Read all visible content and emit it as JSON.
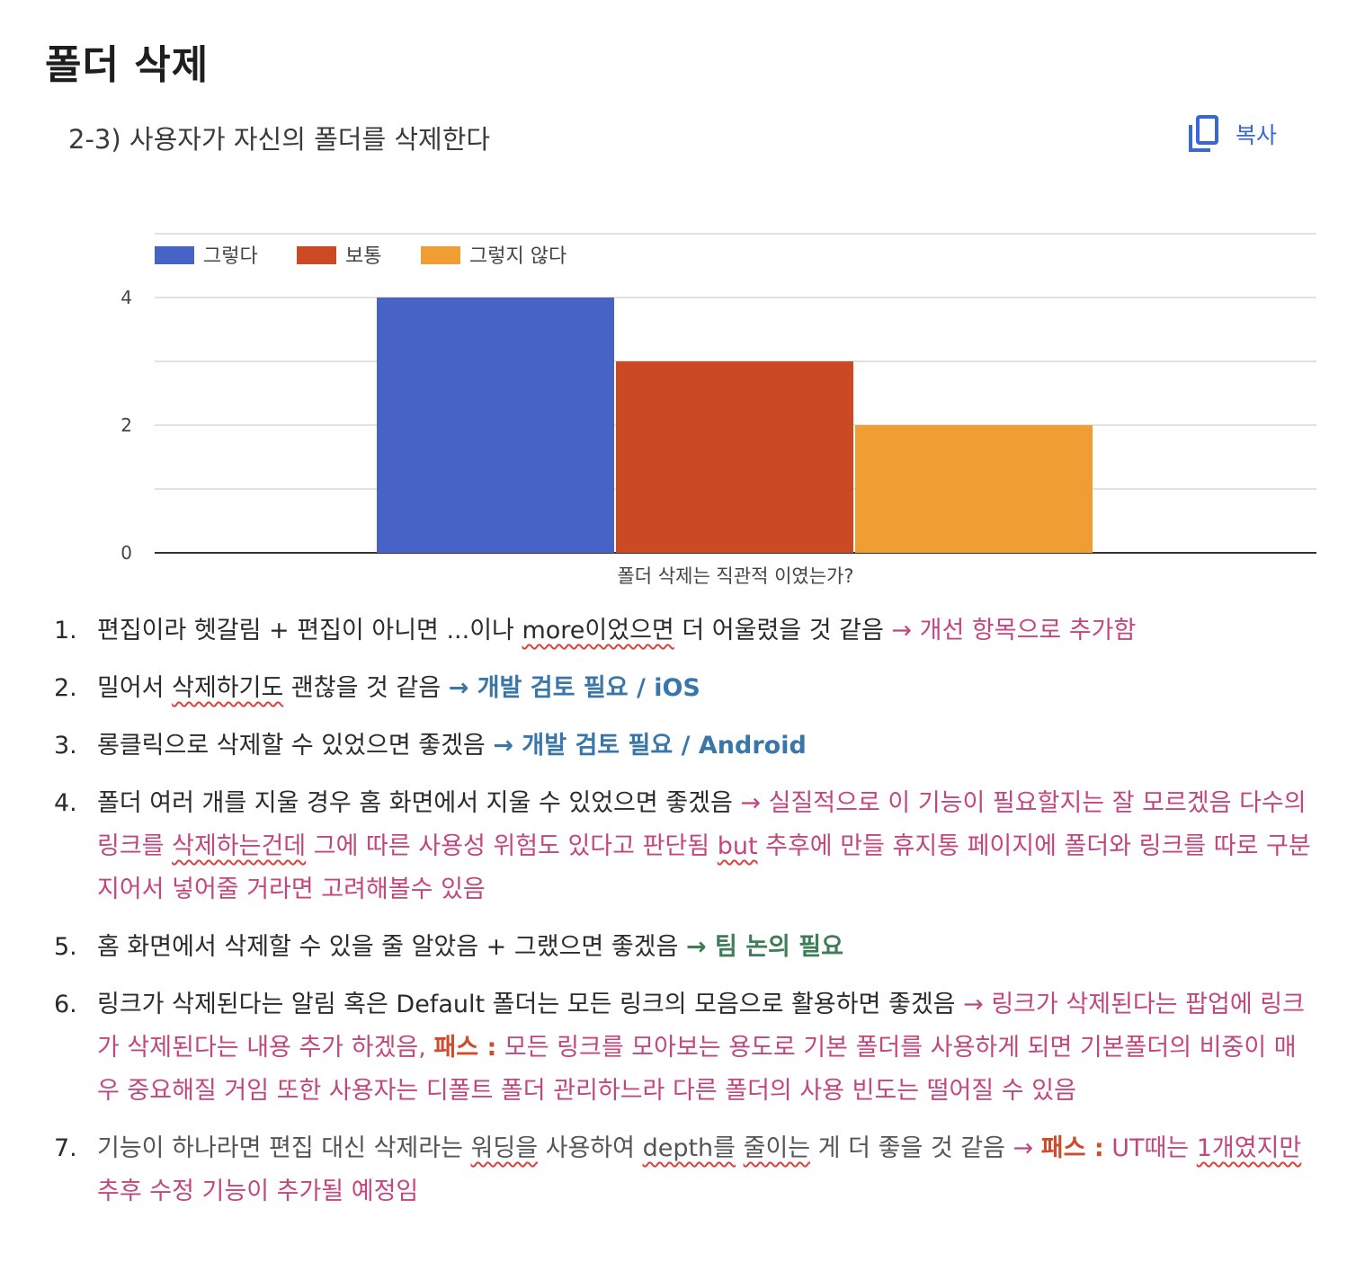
{
  "page": {
    "title": "폴더 삭제",
    "question": "2-3) 사용자가 자신의 폴더를 삭제한다",
    "copy_label": "복사"
  },
  "icons": {
    "copy": "copy-icon"
  },
  "colors": {
    "series_1": "#4763c5",
    "series_2": "#cb4a23",
    "series_3": "#f09e33",
    "pink": "#c2477f",
    "blue": "#3a76a8",
    "green": "#3e7d57"
  },
  "chart_data": {
    "type": "bar",
    "title": "",
    "categories": [
      "폴더 삭제는 직관적 이였는가?"
    ],
    "series": [
      {
        "name": "그렇다",
        "values": [
          4
        ]
      },
      {
        "name": "보통",
        "values": [
          3
        ]
      },
      {
        "name": "그렇지 않다",
        "values": [
          2
        ]
      }
    ],
    "ylim": [
      0,
      4
    ],
    "yticks": [
      "0",
      "2",
      "4"
    ],
    "grid": true,
    "legend": "top-left"
  },
  "notes": [
    {
      "num": "1.",
      "segments": [
        {
          "t": "편집이라 헷갈림 + 편집이 아니면 ...이나 ",
          "c": ""
        },
        {
          "t": "more이었으면",
          "c": "squig"
        },
        {
          "t": " 더 어울렸을 것 같음 ",
          "c": ""
        },
        {
          "t": "→ 개선 항목으로 추가함",
          "c": "pink"
        }
      ]
    },
    {
      "num": "2.",
      "segments": [
        {
          "t": "밀어서 ",
          "c": ""
        },
        {
          "t": "삭제하기도",
          "c": "squig"
        },
        {
          "t": " 괜찮을 것 같음 ",
          "c": ""
        },
        {
          "t": "→ 개발 검토 필요 / iOS",
          "c": "blue"
        }
      ]
    },
    {
      "num": "3.",
      "segments": [
        {
          "t": "롱클릭으로 삭제할 수 있었으면 좋겠음 ",
          "c": ""
        },
        {
          "t": "→ 개발 검토 필요 / Android",
          "c": "blue"
        }
      ]
    },
    {
      "num": "4.",
      "segments": [
        {
          "t": "폴더 여러 개를 지울 경우 홈 화면에서 지울 수 있었으면 좋겠음 ",
          "c": ""
        },
        {
          "t": "→ 실질적으로 이 기능이 필요할지는 잘 모르겠음 다수의 링크를 ",
          "c": "pink"
        },
        {
          "t": "삭제하는건데",
          "c": "pink squig"
        },
        {
          "t": " 그에 따른 사용성 위험도 있다고 판단됨 ",
          "c": "pink"
        },
        {
          "t": "but",
          "c": "pink squig"
        },
        {
          "t": " 추후에 만들 휴지통 페이지에 폴더와 링크를 따로 구분지어서 넣어줄 거라면 고려해볼수 있음",
          "c": "pink"
        }
      ]
    },
    {
      "num": "5.",
      "segments": [
        {
          "t": "홈 화면에서 삭제할 수 있을 줄 알았음 + 그랬으면 좋겠음  ",
          "c": ""
        },
        {
          "t": "→ 팀 논의 필요",
          "c": "green"
        }
      ]
    },
    {
      "num": "6.",
      "segments": [
        {
          "t": "링크가 삭제된다는 알림 혹은 Default 폴더는 모든 링크의 모음으로 활용하면 좋겠음 ",
          "c": ""
        },
        {
          "t": "→ 링크가 삭제된다는 팝업에 링크가 삭제된다는 내용 추가 하겠음, ",
          "c": "pink"
        },
        {
          "t": "패스 :",
          "c": "redb"
        },
        {
          "t": " 모든 링크를 모아보는 용도로 기본 폴더를 사용하게 되면 기본폴더의 비중이 매우 중요해질 거임 또한 사용자는 디폴트 폴더 관리하느라 다른 폴더의 사용 빈도는 떨어질 수 있음",
          "c": "pink"
        }
      ]
    },
    {
      "num": "7.",
      "segments": [
        {
          "t": "기능이 하나라면 편집 대신 삭제라는 ",
          "c": "grey"
        },
        {
          "t": "워딩을",
          "c": "grey squig"
        },
        {
          "t": " 사용하여 ",
          "c": "grey"
        },
        {
          "t": "depth를",
          "c": "grey squig"
        },
        {
          "t": " ",
          "c": "grey"
        },
        {
          "t": "줄이는",
          "c": "grey squig"
        },
        {
          "t": " 게 더 좋을 것 같음 ",
          "c": "grey"
        },
        {
          "t": "→ ",
          "c": "pink"
        },
        {
          "t": "패스 :",
          "c": "redb"
        },
        {
          "t": " UT때는 ",
          "c": "pink"
        },
        {
          "t": "1개였지만",
          "c": "pink squig"
        },
        {
          "t": " 추후 수정 기능이 추가될 예정임",
          "c": "pink"
        }
      ]
    }
  ]
}
